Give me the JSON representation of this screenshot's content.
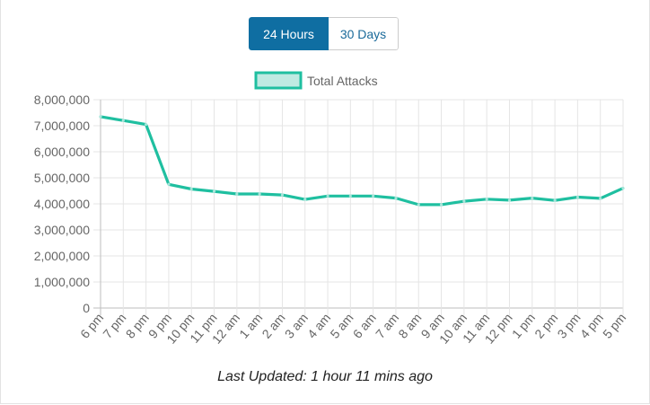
{
  "toggle": {
    "btn_24h": "24 Hours",
    "btn_30d": "30 Days",
    "active": "24 Hours"
  },
  "footer": {
    "last_updated": "Last Updated: 1 hour 11 mins ago"
  },
  "colors": {
    "line": "#1fbfa0",
    "legend_fill": "#bfeae2",
    "active_button": "#0f6ea2",
    "grid": "#e5e5e5",
    "axis_text": "#666666"
  },
  "chart_data": {
    "type": "line",
    "title": "",
    "xlabel": "",
    "ylabel": "",
    "legend": [
      "Total Attacks"
    ],
    "legend_position": "top",
    "grid": true,
    "ylim": [
      0,
      8000000
    ],
    "y_ticks": [
      0,
      1000000,
      2000000,
      3000000,
      4000000,
      5000000,
      6000000,
      7000000,
      8000000
    ],
    "y_tick_labels": [
      "0",
      "1,000,000",
      "2,000,000",
      "3,000,000",
      "4,000,000",
      "5,000,000",
      "6,000,000",
      "7,000,000",
      "8,000,000"
    ],
    "categories": [
      "6 pm",
      "7 pm",
      "8 pm",
      "9 pm",
      "10 pm",
      "11 pm",
      "12 am",
      "1 am",
      "2 am",
      "3 am",
      "4 am",
      "5 am",
      "6 am",
      "7 am",
      "8 am",
      "9 am",
      "10 am",
      "11 am",
      "12 pm",
      "1 pm",
      "2 pm",
      "3 pm",
      "4 pm",
      "5 pm"
    ],
    "series": [
      {
        "name": "Total Attacks",
        "values": [
          7350000,
          7200000,
          7050000,
          4750000,
          4570000,
          4480000,
          4380000,
          4380000,
          4340000,
          4170000,
          4300000,
          4300000,
          4300000,
          4220000,
          3970000,
          3970000,
          4100000,
          4180000,
          4140000,
          4220000,
          4130000,
          4260000,
          4210000,
          4600000
        ]
      }
    ]
  }
}
